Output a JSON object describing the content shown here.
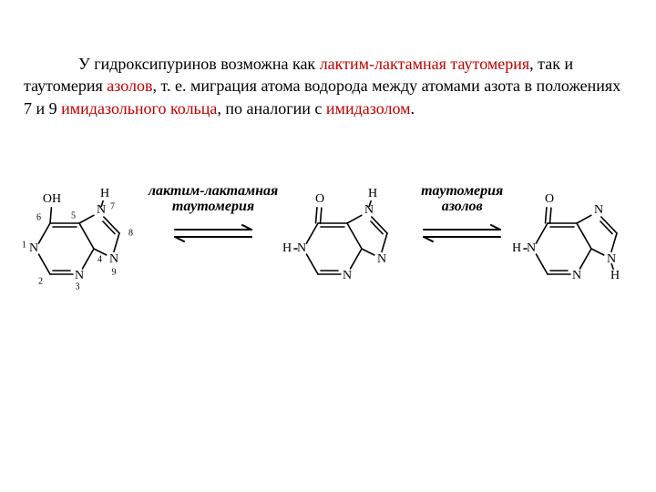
{
  "paragraph": {
    "lead_in": "У гидроксипуринов возможна как ",
    "red1": "лактим-лактамная таутомерия",
    "seg2": ", так и таутомерия ",
    "red2": "азолов",
    "seg3": ", т. е. миграция атома водорода между атомами азота в положениях 7 и 9 ",
    "red3": "имидазольного кольца",
    "seg4": ", по аналогии с ",
    "red4": "имидазолом",
    "seg5": "."
  },
  "labels": {
    "l1": "лактим-лактамная\nтаутомерия",
    "l2": "таутомерия\nазолов"
  },
  "style": {
    "red_hex": "#c00000",
    "stroke": "#000000",
    "stroke_width": 1.6,
    "font_body": 18,
    "font_label": 16,
    "font_atom": 14,
    "font_small": 10
  },
  "structures": {
    "A": {
      "type": "purine",
      "substituent_c6": "OH",
      "n1_h": false,
      "n7_h": true,
      "n9_h": false,
      "show_numbers": true
    },
    "B": {
      "type": "purine",
      "substituent_c6": "O_double",
      "n1_h": true,
      "n7_h": true,
      "n9_h": false,
      "show_numbers": false
    },
    "C": {
      "type": "purine",
      "substituent_c6": "O_double",
      "n1_h": true,
      "n7_h": false,
      "n9_h": true,
      "show_numbers": false
    }
  }
}
